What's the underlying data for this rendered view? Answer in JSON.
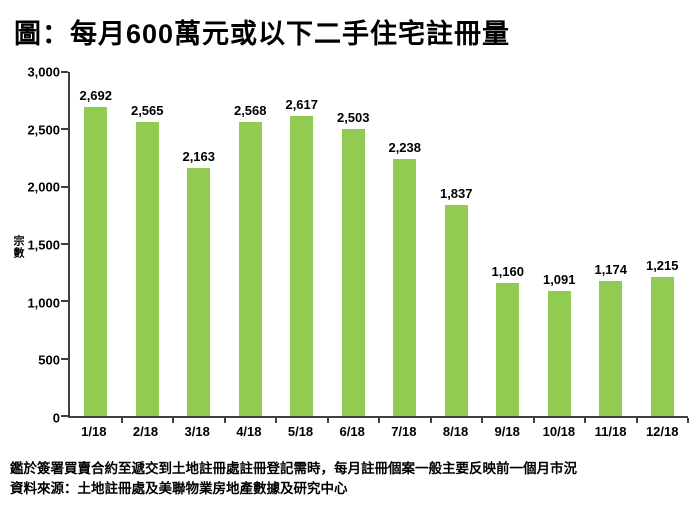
{
  "page_title": "圖：每月600萬元或以下二手住宅註冊量",
  "chart_data": {
    "type": "bar",
    "title": "圖：每月600萬元或以下二手住宅註冊量",
    "categories": [
      "1/18",
      "2/18",
      "3/18",
      "4/18",
      "5/18",
      "6/18",
      "7/18",
      "8/18",
      "9/18",
      "10/18",
      "11/18",
      "12/18"
    ],
    "values": [
      2692,
      2565,
      2163,
      2568,
      2617,
      2503,
      2238,
      1837,
      1160,
      1091,
      1174,
      1215
    ],
    "value_labels": [
      "2,692",
      "2,565",
      "2,163",
      "2,568",
      "2,617",
      "2,503",
      "2,238",
      "1,837",
      "1,160",
      "1,091",
      "1,174",
      "1,215"
    ],
    "xlabel": "",
    "ylabel": "宗數",
    "ylim": [
      0,
      3000
    ],
    "yticks": [
      0,
      500,
      1000,
      1500,
      2000,
      2500,
      3000
    ],
    "ytick_labels": [
      "0",
      "500",
      "1,000",
      "1,500",
      "2,000",
      "2,500",
      "3,000"
    ],
    "grid": false,
    "legend": null,
    "bar_color": "#92CB51",
    "axis_color": "#3F3F3F",
    "text_color": "#000000"
  },
  "footnotes": [
    "鑑於簽署買賣合約至遞交到土地註冊處註冊登記需時，每月註冊個案一般主要反映前一個月市況",
    "資料來源：土地註冊處及美聯物業房地產數據及研究中心"
  ]
}
